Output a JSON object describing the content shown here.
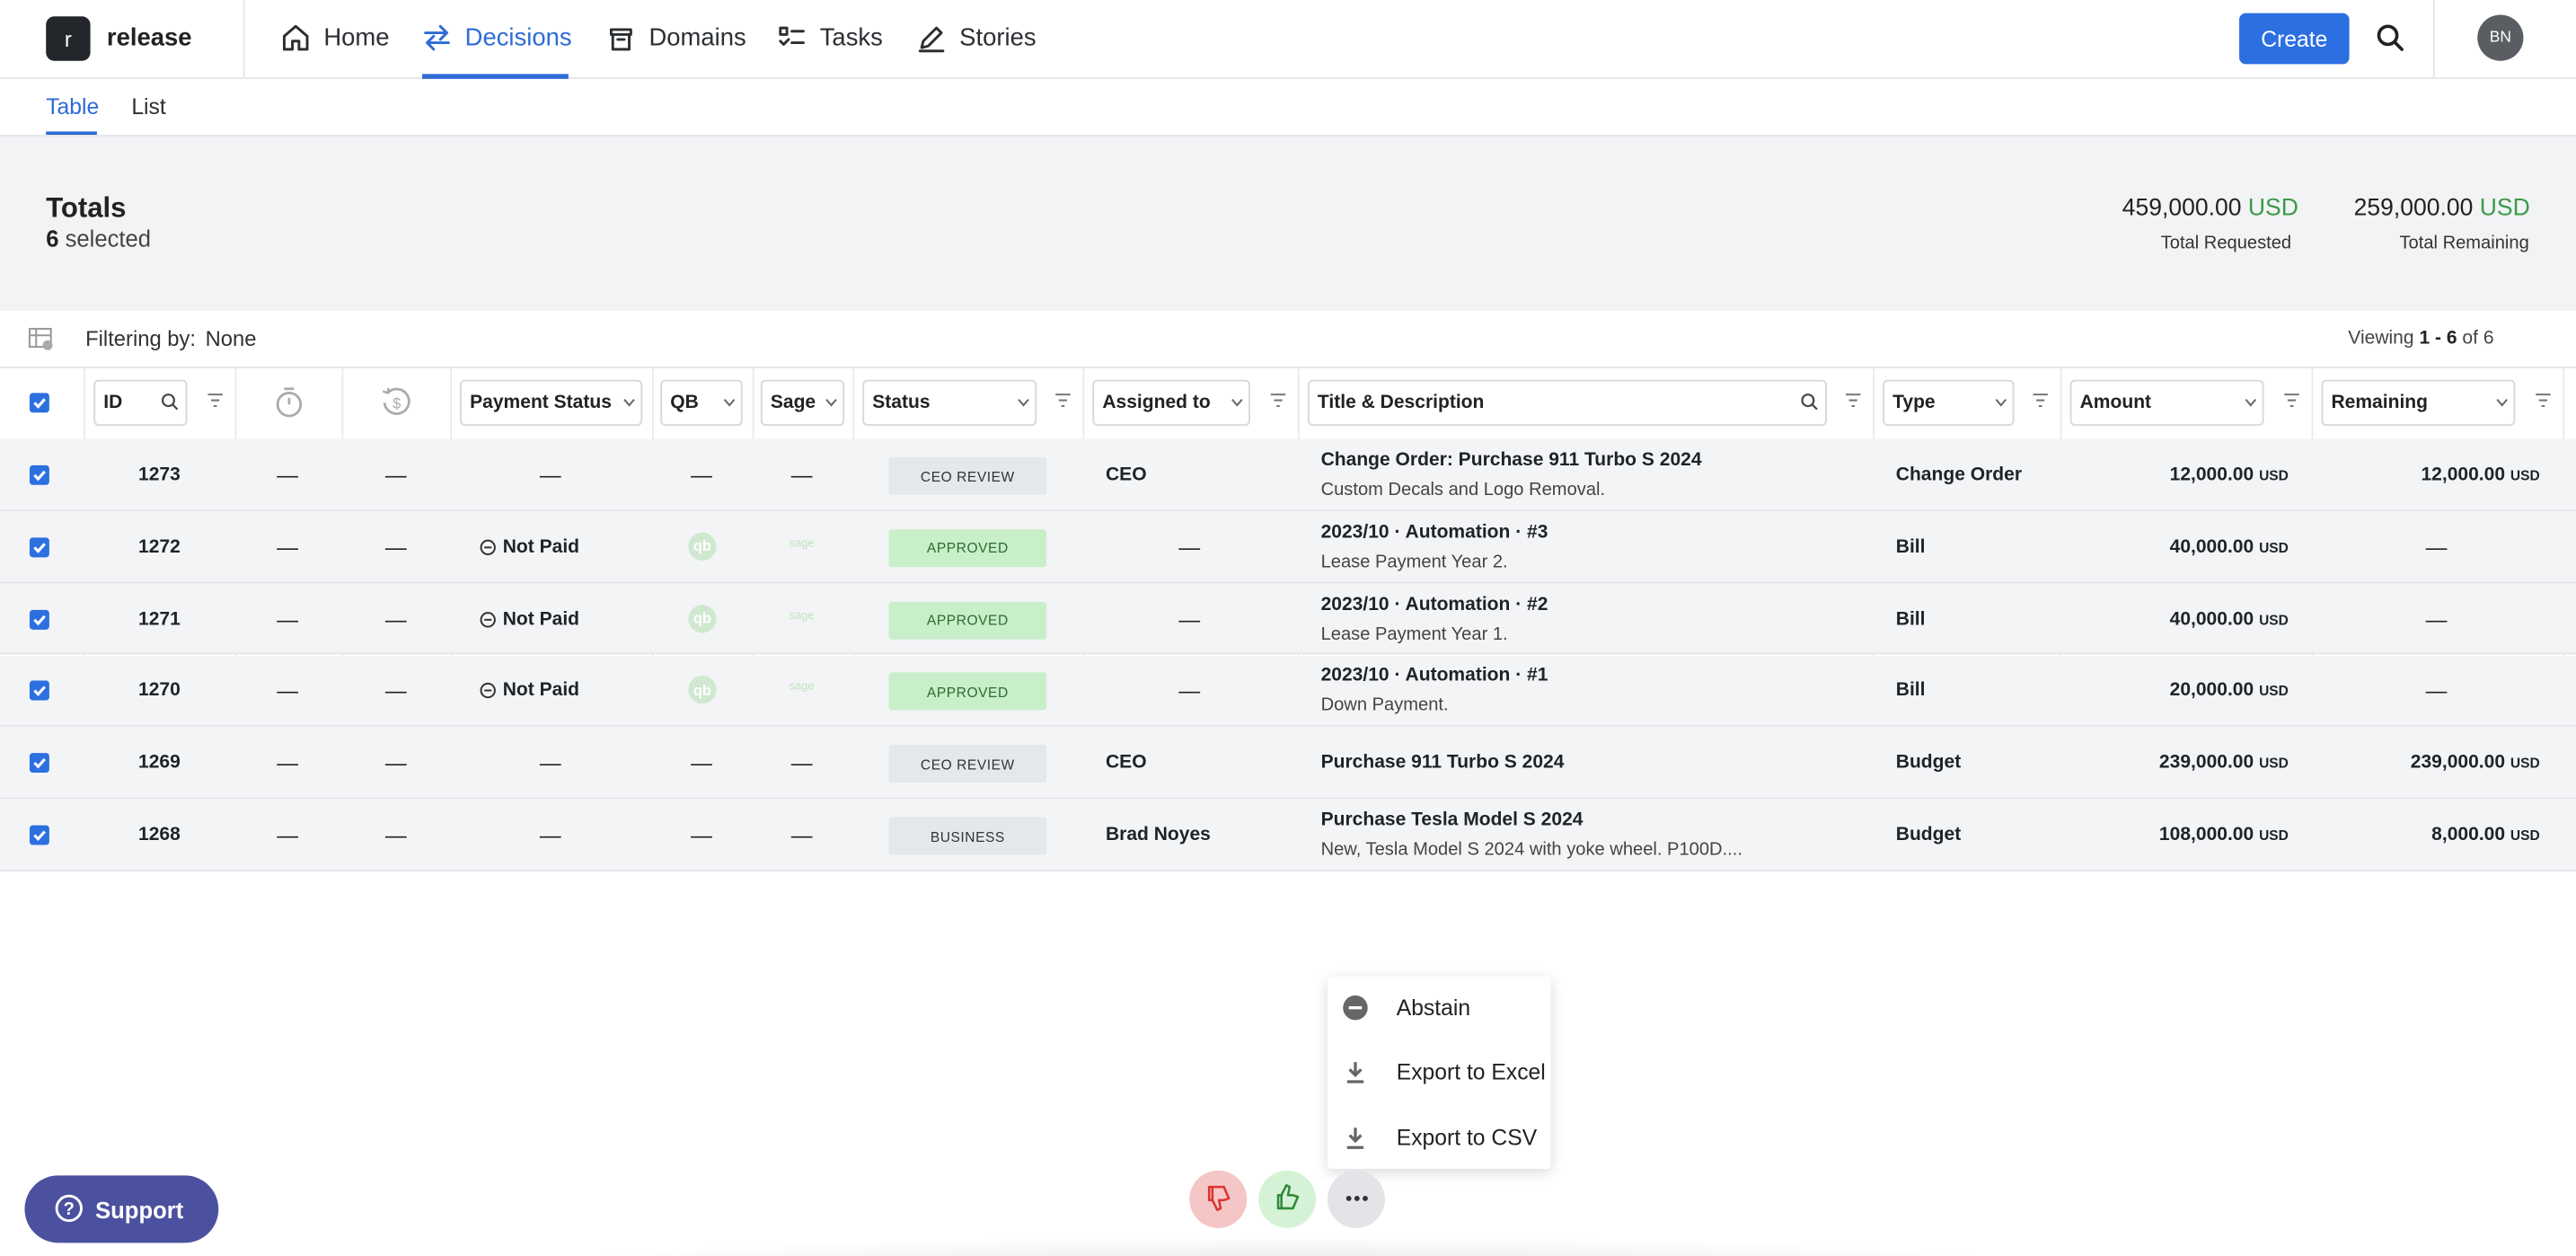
{
  "nav": {
    "logo_letter": "r",
    "workspace": "release",
    "items": [
      "Home",
      "Decisions",
      "Domains",
      "Tasks",
      "Stories"
    ],
    "active": 1,
    "create": "Create",
    "avatar": "BN"
  },
  "subtabs": {
    "items": [
      "Table",
      "List"
    ],
    "active": 0
  },
  "totals": {
    "title": "Totals",
    "selected_count": "6",
    "selected_label": "selected",
    "requested": {
      "amount": "459,000.00",
      "currency": "USD",
      "label": "Total Requested"
    },
    "remaining": {
      "amount": "259,000.00",
      "currency": "USD",
      "label": "Total Remaining"
    }
  },
  "filter": {
    "label": "Filtering by:",
    "value": "None",
    "viewing_prefix": "Viewing",
    "viewing_range": "1 - 6",
    "viewing_of": "of",
    "viewing_total": "6"
  },
  "table": {
    "columns": {
      "id": "ID",
      "payment": "Payment Status",
      "qb": "QB",
      "sage": "Sage",
      "status": "Status",
      "assigned": "Assigned to",
      "title": "Title & Description",
      "type": "Type",
      "amount": "Amount",
      "remaining": "Remaining"
    },
    "rows": [
      {
        "id": "1273",
        "timer": "—",
        "refund": "—",
        "payment": "—",
        "qb": "—",
        "sage": "—",
        "status": "CEO REVIEW",
        "status_color": "#e4e7eb",
        "assigned": "CEO",
        "title": "Change Order: Purchase 911 Turbo S 2024",
        "description": "Custom Decals and Logo Removal.",
        "type": "Change Order",
        "amount": "12,000.00",
        "amount_currency": "USD",
        "remaining": "12,000.00",
        "remaining_currency": "USD"
      },
      {
        "id": "1272",
        "timer": "—",
        "refund": "—",
        "payment": "Not Paid",
        "qb": "qb",
        "sage": "sage",
        "status": "APPROVED",
        "status_color": "#c8efc9",
        "assigned": "—",
        "title": "2023/10 · Automation · #3",
        "description": "Lease Payment Year 2.",
        "type": "Bill",
        "amount": "40,000.00",
        "amount_currency": "USD",
        "remaining": "—"
      },
      {
        "id": "1271",
        "timer": "—",
        "refund": "—",
        "payment": "Not Paid",
        "qb": "qb",
        "sage": "sage",
        "status": "APPROVED",
        "status_color": "#c8efc9",
        "assigned": "—",
        "title": "2023/10 · Automation · #2",
        "description": "Lease Payment Year 1.",
        "type": "Bill",
        "amount": "40,000.00",
        "amount_currency": "USD",
        "remaining": "—"
      },
      {
        "id": "1270",
        "timer": "—",
        "refund": "—",
        "payment": "Not Paid",
        "qb": "qb",
        "sage": "sage",
        "status": "APPROVED",
        "status_color": "#c8efc9",
        "assigned": "—",
        "title": "2023/10 · Automation · #1",
        "description": "Down Payment.",
        "type": "Bill",
        "amount": "20,000.00",
        "amount_currency": "USD",
        "remaining": "—"
      },
      {
        "id": "1269",
        "timer": "—",
        "refund": "—",
        "payment": "—",
        "qb": "—",
        "sage": "—",
        "status": "CEO REVIEW",
        "status_color": "#e4e7eb",
        "assigned": "CEO",
        "title": "Purchase 911 Turbo S 2024",
        "type": "Budget",
        "amount": "239,000.00",
        "amount_currency": "USD",
        "remaining": "239,000.00",
        "remaining_currency": "USD"
      },
      {
        "id": "1268",
        "timer": "—",
        "refund": "—",
        "payment": "—",
        "qb": "—",
        "sage": "—",
        "status": "BUSINESS",
        "status_color": "#e4e7eb",
        "assigned": "Brad Noyes",
        "title": "Purchase Tesla Model S 2024",
        "description": "New, Tesla Model S 2024 with yoke wheel. P100D....",
        "type": "Budget",
        "amount": "108,000.00",
        "amount_currency": "USD",
        "remaining": "8,000.00",
        "remaining_currency": "USD"
      }
    ]
  },
  "menu": [
    "Abstain",
    "Export to Excel",
    "Export to CSV"
  ],
  "support": "Support"
}
